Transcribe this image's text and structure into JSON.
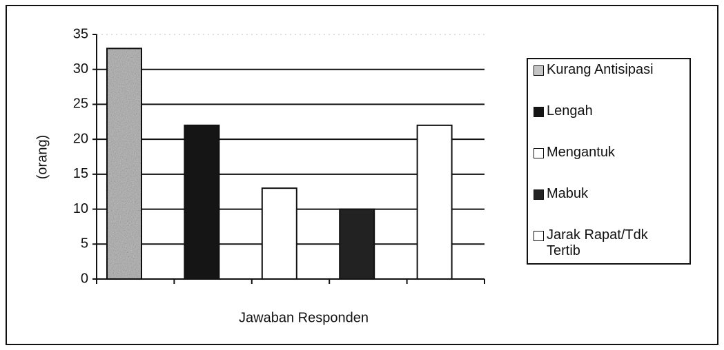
{
  "chart_data": {
    "type": "bar",
    "x_label": "Jawaban Responden",
    "y_label": "(orang)",
    "categories": [
      null,
      null,
      null,
      null,
      null
    ],
    "series": [
      {
        "name": "Kurang Antisipasi",
        "color": "#c4c4c4",
        "values": [
          33,
          null,
          null,
          null,
          null
        ]
      },
      {
        "name": "Lengah",
        "color": "#151515",
        "values": [
          null,
          22,
          null,
          null,
          null
        ]
      },
      {
        "name": "Mengantuk",
        "color": "#ffffff",
        "values": [
          null,
          null,
          13,
          null,
          null
        ]
      },
      {
        "name": "Mabuk",
        "color": "#222222",
        "values": [
          null,
          null,
          null,
          10,
          null
        ]
      },
      {
        "name": "Jarak Rapat/Tdk Tertib",
        "color": "#ffffff",
        "values": [
          null,
          null,
          null,
          null,
          22
        ]
      }
    ],
    "ylim": [
      0,
      35
    ],
    "yticks": [
      0,
      5,
      10,
      15,
      20,
      25,
      30,
      35
    ],
    "grid": true,
    "legend": "right"
  }
}
